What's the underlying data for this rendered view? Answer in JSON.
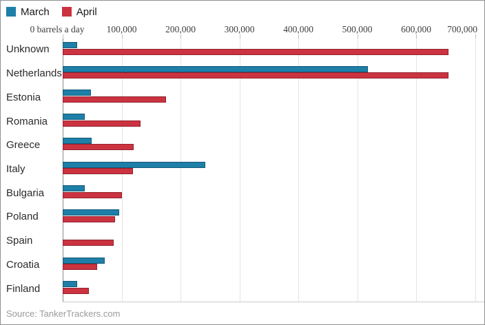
{
  "legend": {
    "items": [
      {
        "label": "March",
        "color": "#1e7fa8"
      },
      {
        "label": "April",
        "color": "#cb3340"
      }
    ]
  },
  "axis": {
    "tick_labels": [
      "0 barrels a day",
      "100,000",
      "200,000",
      "300,000",
      "400,000",
      "500,000",
      "600,000",
      "700,000"
    ],
    "tick_values": [
      0,
      100000,
      200000,
      300000,
      400000,
      500000,
      600000,
      700000
    ]
  },
  "source": "Source: TankerTrackers.com",
  "chart_data": {
    "type": "bar",
    "orientation": "horizontal",
    "unit": "barrels a day",
    "title": "",
    "xlabel": "barrels a day",
    "ylabel": "",
    "xlim": [
      0,
      700000
    ],
    "grid": true,
    "legend_position": "top-left",
    "categories": [
      "Unknown",
      "Netherlands",
      "Estonia",
      "Romania",
      "Greece",
      "Italy",
      "Bulgaria",
      "Poland",
      "Spain",
      "Croatia",
      "Finland"
    ],
    "series": [
      {
        "name": "March",
        "color": "#1e7fa8",
        "values": [
          25000,
          518000,
          48000,
          37000,
          49000,
          242000,
          37000,
          96000,
          0,
          71000,
          24000
        ]
      },
      {
        "name": "April",
        "color": "#cb3340",
        "values": [
          655000,
          655000,
          175000,
          132000,
          120000,
          119000,
          100000,
          89000,
          86000,
          59000,
          44000
        ]
      }
    ],
    "source": "Source: TankerTrackers.com"
  }
}
